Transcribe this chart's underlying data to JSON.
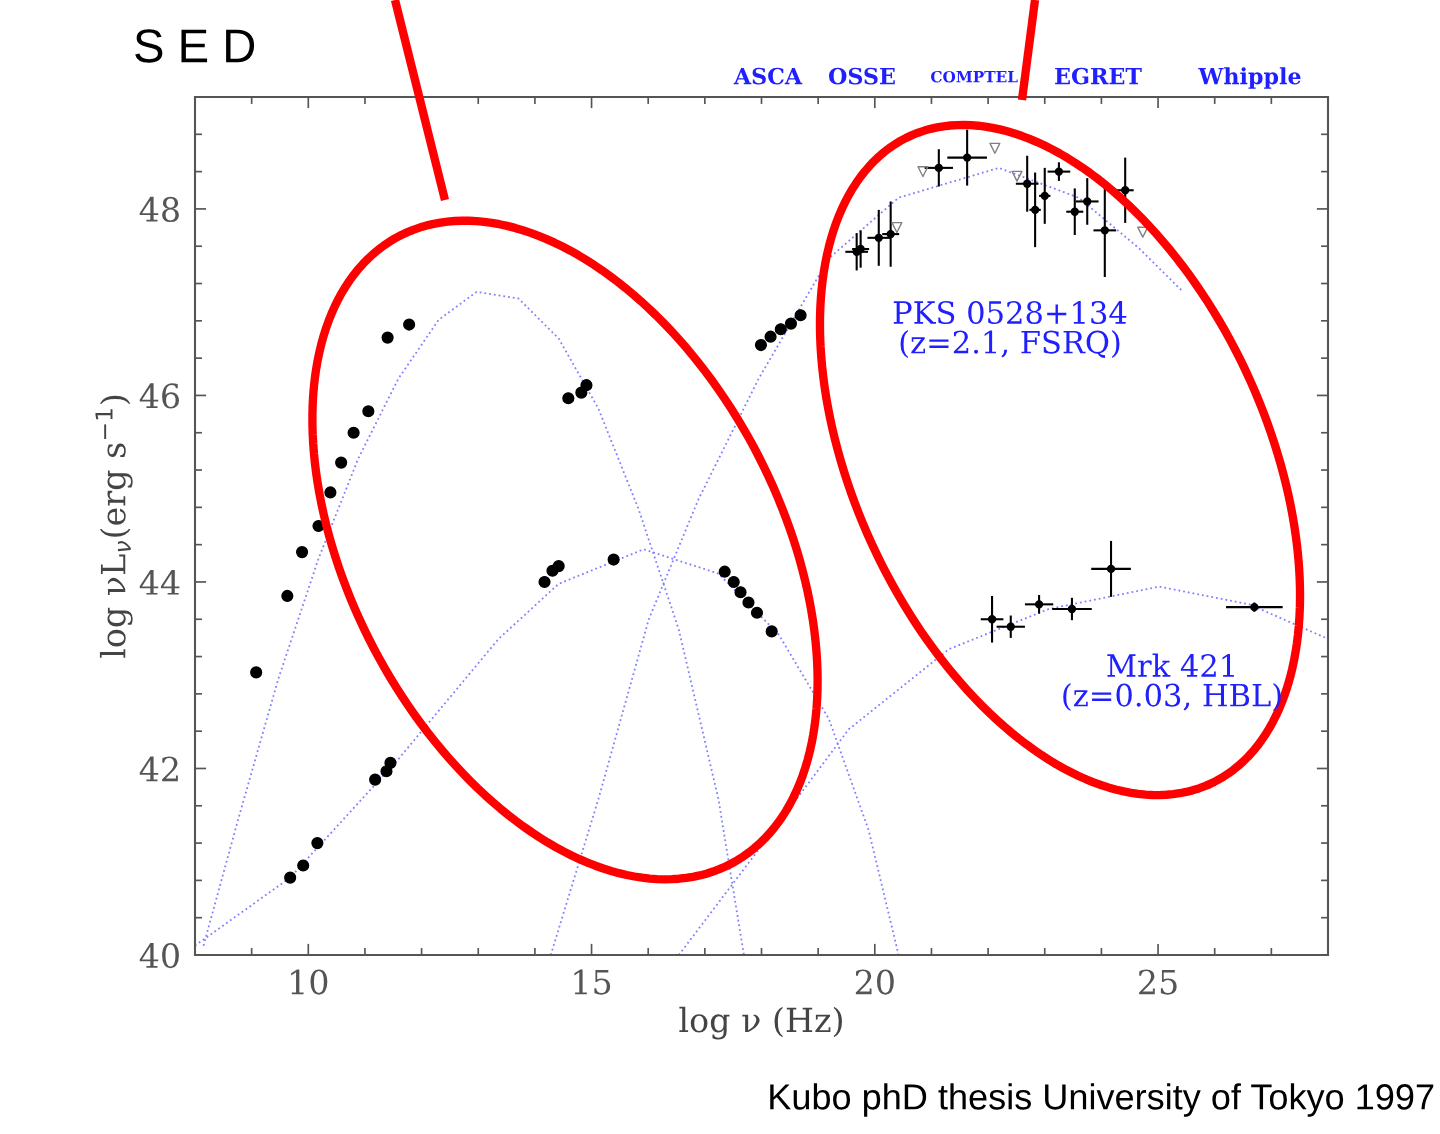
{
  "chart_data": {
    "type": "scatter",
    "title": "S E D",
    "xlabel": "log ν (Hz)",
    "ylabel": "log νL$_{ν}$(erg s$^{−1}$)",
    "xlim": [
      8,
      28
    ],
    "ylim": [
      40,
      49.2
    ],
    "xticks": [
      {
        "value": 8,
        "label": null
      },
      {
        "value": 9,
        "label": null
      },
      10,
      {
        "value": 11,
        "label": null
      },
      {
        "value": 12,
        "label": null
      },
      {
        "value": 13,
        "label": null
      },
      {
        "value": 14,
        "label": null
      },
      15,
      {
        "value": 16,
        "label": null
      },
      {
        "value": 17,
        "label": null
      },
      {
        "value": 18,
        "label": null
      },
      {
        "value": 19,
        "label": null
      },
      20,
      {
        "value": 21,
        "label": null
      },
      {
        "value": 22,
        "label": null
      },
      {
        "value": 23,
        "label": null
      },
      {
        "value": 24,
        "label": null
      },
      25,
      {
        "value": 26,
        "label": null
      },
      {
        "value": 27,
        "label": null
      }
    ],
    "yticks": [
      40,
      {
        "value": 40.4,
        "label": null
      },
      {
        "value": 40.8,
        "label": null
      },
      {
        "value": 41.2,
        "label": null
      },
      {
        "value": 41.6,
        "label": null
      },
      42,
      {
        "value": 42.4,
        "label": null
      },
      {
        "value": 42.8,
        "label": null
      },
      {
        "value": 43.2,
        "label": null
      },
      {
        "value": 43.6,
        "label": null
      },
      44,
      {
        "value": 44.4,
        "label": null
      },
      {
        "value": 44.8,
        "label": null
      },
      {
        "value": 45.2,
        "label": null
      },
      {
        "value": 45.6,
        "label": null
      },
      46,
      {
        "value": 46.4,
        "label": null
      },
      {
        "value": 46.8,
        "label": null
      },
      {
        "value": 47.2,
        "label": null
      },
      {
        "value": 47.6,
        "label": null
      },
      48,
      {
        "value": 48.4,
        "label": null
      },
      {
        "value": 48.8,
        "label": null
      }
    ],
    "grid": false,
    "legend": false,
    "series": [
      {
        "type": "line",
        "color": "#8080ff",
        "line_style": "dotted",
        "marker": "none",
        "x": [
          8.15,
          8.76,
          9.47,
          10.18,
          10.88,
          11.59,
          12.3,
          12.97,
          13.71,
          14.42,
          15.12,
          15.83,
          16.54,
          17.24,
          17.69
        ],
        "values": [
          40.1,
          41.45,
          42.96,
          44.25,
          45.32,
          46.18,
          46.81,
          47.11,
          47.04,
          46.61,
          45.86,
          44.78,
          43.49,
          41.67,
          40
        ]
      },
      {
        "type": "line",
        "color": "#8080ff",
        "line_style": "dotted",
        "marker": "none",
        "x": [
          14.28,
          15.12,
          16.01,
          16.89,
          17.95,
          19.19,
          20.42,
          22.19,
          23.6,
          24.66,
          25.41
        ],
        "values": [
          40,
          41.67,
          43.6,
          44.89,
          46.18,
          47.47,
          48.12,
          48.44,
          48.12,
          47.58,
          47.13
        ]
      },
      {
        "type": "line",
        "color": "#8080ff",
        "line_style": "dotted",
        "marker": "none",
        "x": [
          8.0,
          9.68,
          11.59,
          13.36,
          14.42,
          15.92,
          17.24,
          18.3,
          19.19,
          19.89,
          20.42
        ],
        "values": [
          40.1,
          40.83,
          42.1,
          43.39,
          43.98,
          44.35,
          44.09,
          43.44,
          42.53,
          41.34,
          40
        ]
      },
      {
        "type": "line",
        "color": "#8080ff",
        "line_style": "dotted",
        "marker": "none",
        "x": [
          16.54,
          17.95,
          19.54,
          21.31,
          23.07,
          25.02,
          26.61,
          28
        ],
        "values": [
          40,
          41.13,
          42.42,
          43.28,
          43.71,
          43.95,
          43.76,
          43.39
        ]
      },
      {
        "color": "#000000",
        "marker": "circle",
        "x": [
          9.08,
          9.63,
          9.89,
          10.18,
          10.39,
          10.58,
          10.8,
          11.06,
          11.4,
          11.78,
          14.59,
          14.82,
          14.91,
          17.99,
          18.16,
          18.34,
          18.52,
          18.69
        ],
        "values": [
          43.03,
          43.85,
          44.32,
          44.6,
          44.96,
          45.28,
          45.6,
          45.83,
          46.62,
          46.76,
          45.97,
          46.03,
          46.11,
          46.54,
          46.63,
          46.71,
          46.77,
          46.86
        ]
      },
      {
        "color": "#000000",
        "marker": "circle",
        "x": [
          19.68,
          19.75,
          20.07,
          20.28,
          21.13,
          21.63,
          22.69,
          22.83,
          23.0,
          23.25,
          23.53,
          23.75,
          24.06,
          24.42
        ],
        "values": [
          47.54,
          47.57,
          47.69,
          47.73,
          48.44,
          48.55,
          48.27,
          47.99,
          48.14,
          48.4,
          47.97,
          48.08,
          47.77,
          48.2
        ],
        "errors": [
          0.2,
          0.2,
          0.3,
          0.35,
          0.2,
          0.3,
          0.3,
          0.4,
          0.3,
          0.1,
          0.25,
          0.25,
          0.5,
          0.35
        ],
        "xerrors": [
          0.2,
          0.15,
          0.2,
          0.15,
          0.25,
          0.35,
          0.2,
          0.1,
          0.1,
          0.2,
          0.15,
          0.2,
          0.2,
          0.15
        ]
      },
      {
        "color": "#808080",
        "marker": "triangle",
        "x": [
          20.39,
          20.85,
          22.12,
          22.51,
          24.73
        ],
        "values": [
          47.8,
          48.4,
          48.65,
          48.35,
          47.75
        ]
      },
      {
        "color": "#000000",
        "marker": "circle",
        "x": [
          9.68,
          9.91,
          10.16,
          11.18,
          11.38,
          11.45,
          14.17,
          14.31,
          14.42,
          15.39,
          17.35,
          17.51,
          17.63,
          17.77,
          17.92,
          18.18
        ],
        "values": [
          40.83,
          40.96,
          41.2,
          41.88,
          41.97,
          42.06,
          44.0,
          44.12,
          44.17,
          44.24,
          44.11,
          44.0,
          43.89,
          43.78,
          43.67,
          43.47
        ]
      },
      {
        "color": "#000000",
        "marker": "circle",
        "x": [
          22.07,
          22.4,
          22.9,
          23.48,
          24.17,
          26.7
        ],
        "values": [
          43.6,
          43.52,
          43.76,
          43.71,
          44.14,
          43.73
        ],
        "errors": [
          0.25,
          0.12,
          0.1,
          0.12,
          0.3,
          0.05
        ],
        "xerrors": [
          0.2,
          0.25,
          0.25,
          0.35,
          0.35,
          0.5
        ]
      }
    ],
    "annotations": [
      "PKS 0528+134\n(z=2.1, FSRQ)",
      "Mrk 421\n(z=0.03, HBL)",
      "ASCA",
      "OSSE",
      "COMPTEL",
      "EGRET",
      "Whipple",
      "Kubo phD thesis University of Tokyo 1997"
    ]
  }
}
